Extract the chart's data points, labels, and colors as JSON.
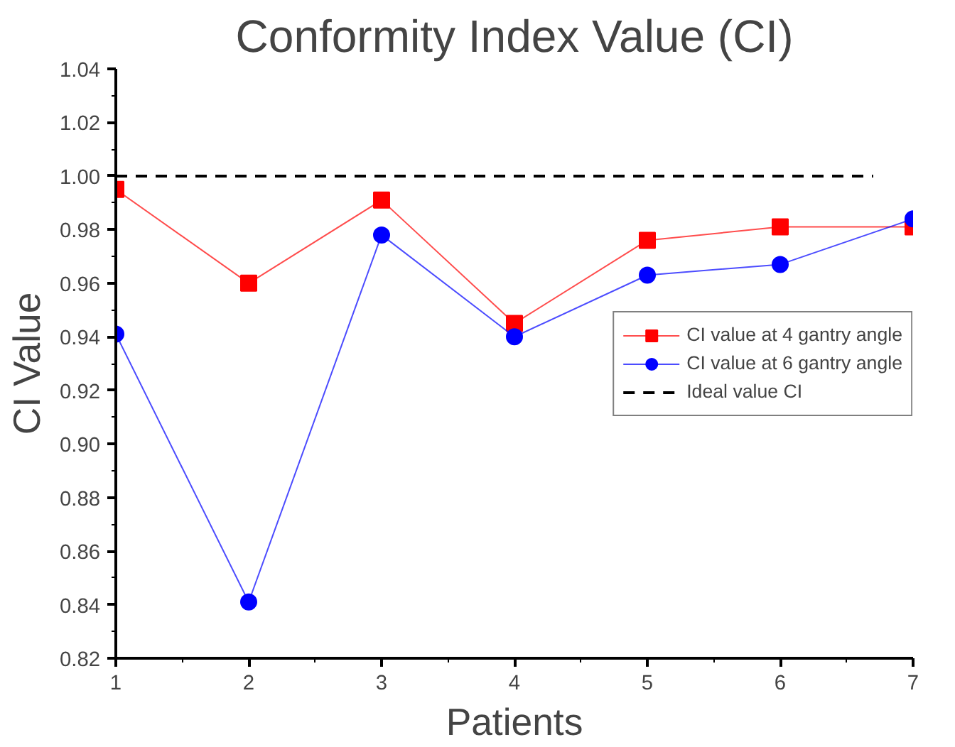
{
  "chart_data": {
    "type": "line",
    "title": "Conformity Index Value (CI)",
    "xlabel": "Patients",
    "ylabel": "CI Value",
    "x": [
      1,
      2,
      3,
      4,
      5,
      6,
      7
    ],
    "series": [
      {
        "name": "CI value at 4 gantry angle",
        "color": "#ff0000",
        "marker": "square",
        "values": [
          0.995,
          0.96,
          0.991,
          0.945,
          0.976,
          0.981,
          0.981
        ]
      },
      {
        "name": "CI value at 6 gantry angle",
        "color": "#0000ff",
        "marker": "circle",
        "values": [
          0.941,
          0.841,
          0.978,
          0.94,
          0.963,
          0.967,
          0.984
        ]
      }
    ],
    "ref_lines": [
      {
        "axis": "y",
        "value": 1.0,
        "label": "Ideal value CI",
        "color": "#000000",
        "line_style": "dashed"
      }
    ],
    "xlim": [
      1,
      7
    ],
    "ylim": [
      0.82,
      1.04
    ],
    "xticks": [
      1,
      2,
      3,
      4,
      5,
      6,
      7
    ],
    "yticks": [
      {
        "value": 0.82,
        "label": "0.82"
      },
      {
        "value": 0.84,
        "label": "0.84"
      },
      {
        "value": 0.86,
        "label": "0.86"
      },
      {
        "value": 0.88,
        "label": "0.88"
      },
      {
        "value": 0.9,
        "label": "0.90"
      },
      {
        "value": 0.92,
        "label": "0.92"
      },
      {
        "value": 0.94,
        "label": "0.94"
      },
      {
        "value": 0.96,
        "label": "0.96"
      },
      {
        "value": 0.98,
        "label": "0.98"
      },
      {
        "value": 1.0,
        "label": "1.00"
      },
      {
        "value": 1.02,
        "label": "1.02"
      },
      {
        "value": 1.04,
        "label": "1.04"
      }
    ],
    "grid": false,
    "legend": "right",
    "line_style": "solid"
  }
}
